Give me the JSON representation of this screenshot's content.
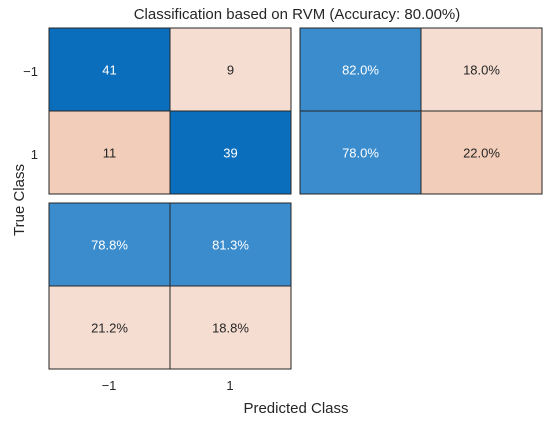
{
  "chart_data": {
    "type": "heatmap",
    "title": "Classification based on RVM (Accuracy: 80.00%)",
    "xlabel": "Predicted Class",
    "ylabel": "True Class",
    "x_ticks": [
      "−1",
      "1"
    ],
    "y_ticks": [
      "−1",
      "1"
    ],
    "confusion_matrix": {
      "rows": [
        "−1",
        "1"
      ],
      "cols": [
        "−1",
        "1"
      ],
      "values": [
        [
          41,
          9
        ],
        [
          11,
          39
        ]
      ]
    },
    "row_summary": {
      "values": [
        [
          "82.0%",
          "18.0%"
        ],
        [
          "78.0%",
          "22.0%"
        ]
      ],
      "fractions": [
        [
          0.82,
          0.18
        ],
        [
          0.78,
          0.22
        ]
      ]
    },
    "column_summary": {
      "values": [
        [
          "78.8%",
          "81.3%"
        ],
        [
          "21.2%",
          "18.8%"
        ]
      ],
      "fractions": [
        [
          0.788,
          0.813
        ],
        [
          0.212,
          0.188
        ]
      ]
    },
    "colors": {
      "correct_dark": "#0a6ebd",
      "correct_mid": "#3a8ccc",
      "incorrect_light": "#f6ddd1",
      "incorrect_mid": "#f2cdb9",
      "grid_line": "#262626"
    }
  }
}
